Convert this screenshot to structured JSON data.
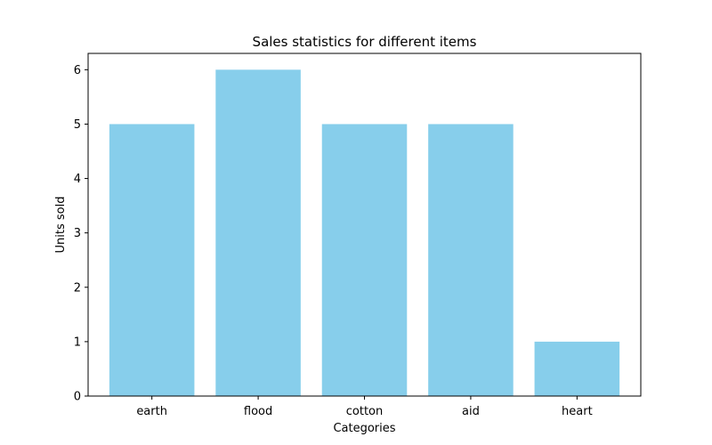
{
  "chart_data": {
    "type": "bar",
    "title": "Sales statistics for different items",
    "xlabel": "Categories",
    "ylabel": "Units sold",
    "categories": [
      "earth",
      "flood",
      "cotton",
      "aid",
      "heart"
    ],
    "values": [
      5,
      6,
      5,
      5,
      1
    ],
    "ylim": [
      0,
      6.3
    ],
    "yticks": [
      0,
      1,
      2,
      3,
      4,
      5,
      6
    ],
    "bar_color": "#87ceeb",
    "grid": false,
    "legend": "none"
  }
}
